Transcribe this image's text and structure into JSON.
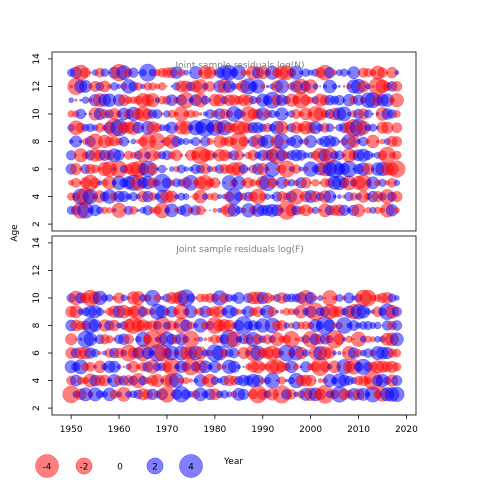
{
  "chart_data": {
    "type": "scatter",
    "description_axis": {
      "xlabel": "Year",
      "ylabel": "Age",
      "x_ticks": [
        1950,
        1960,
        1970,
        1980,
        1990,
        2000,
        2010,
        2020
      ],
      "y_ticks": [
        2,
        4,
        6,
        8,
        10,
        12,
        14
      ],
      "xlim": [
        1946,
        2022
      ],
      "ylim": [
        1.5,
        14.5
      ]
    },
    "panels": [
      {
        "title": "Joint sample residuals log(N)",
        "years": [
          1950,
          2018
        ],
        "ages": [
          3,
          13
        ],
        "seed": 7
      },
      {
        "title": "Joint sample residuals log(F)",
        "years": [
          1950,
          2018
        ],
        "ages": [
          3,
          10
        ],
        "seed": 31
      }
    ],
    "legend": {
      "entries": [
        {
          "label": "-4",
          "value": -4
        },
        {
          "label": "-2",
          "value": -2
        },
        {
          "label": "0",
          "value": 0
        },
        {
          "label": "2",
          "value": 2
        },
        {
          "label": "4",
          "value": 4
        }
      ],
      "title": "Year"
    },
    "colors": {
      "negative": "#ff0000",
      "positive": "#0000ff"
    },
    "max_abs_residual": 4
  }
}
